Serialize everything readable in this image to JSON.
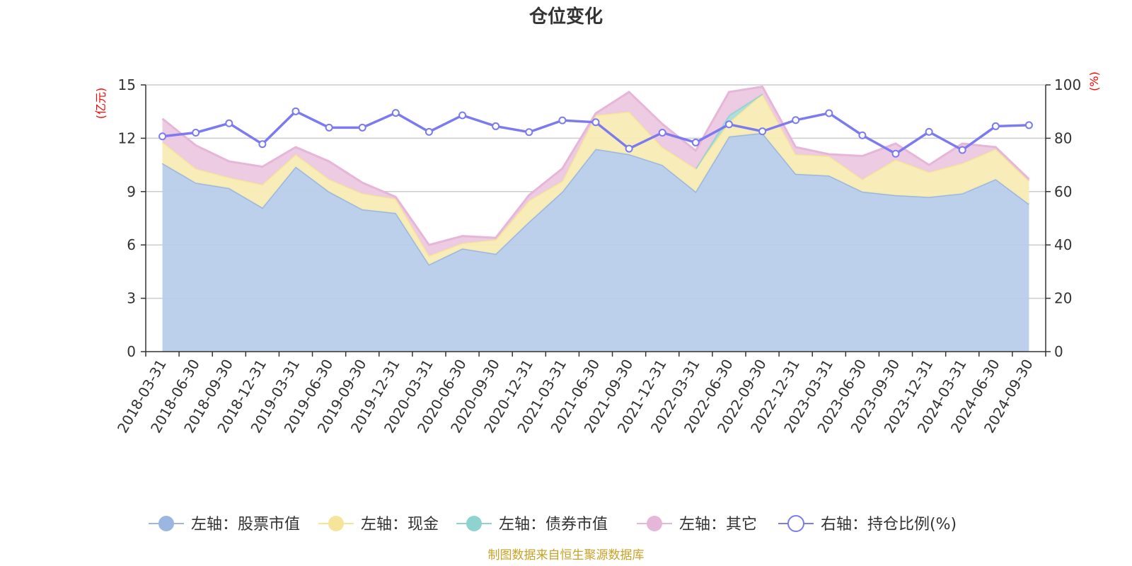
{
  "chart_data": {
    "type": "area",
    "title": "仓位变化",
    "left_axis_unit": "(亿元)",
    "right_axis_unit": "(%)",
    "left_axis": {
      "min": 0,
      "max": 15,
      "ticks": [
        0,
        3,
        6,
        9,
        12,
        15
      ]
    },
    "right_axis": {
      "min": 0,
      "max": 100,
      "ticks": [
        0,
        20,
        40,
        60,
        80,
        100
      ]
    },
    "grid": true,
    "legend_position": "bottom",
    "categories": [
      "2018-03-31",
      "2018-06-30",
      "2018-09-30",
      "2018-12-31",
      "2019-03-31",
      "2019-06-30",
      "2019-09-30",
      "2019-12-31",
      "2020-03-31",
      "2020-06-30",
      "2020-09-30",
      "2020-12-31",
      "2021-03-31",
      "2021-06-30",
      "2021-09-30",
      "2021-12-31",
      "2022-03-31",
      "2022-06-30",
      "2022-09-30",
      "2022-12-31",
      "2023-03-31",
      "2023-06-30",
      "2023-09-30",
      "2023-12-31",
      "2024-03-31",
      "2024-06-30",
      "2024-09-30"
    ],
    "series": [
      {
        "name": "左轴：股票市值",
        "axis": "left",
        "stacked": true,
        "color": "#9bb6e0",
        "fill": "#b8cdea",
        "values": [
          10.6,
          9.5,
          9.2,
          8.1,
          10.4,
          9.0,
          8.0,
          7.8,
          4.9,
          5.8,
          5.5,
          7.3,
          9.0,
          11.4,
          11.1,
          10.5,
          9.0,
          12.1,
          12.3,
          10.0,
          9.9,
          9.0,
          8.8,
          8.7,
          8.9,
          9.7,
          8.3
        ]
      },
      {
        "name": "左轴：现金",
        "axis": "left",
        "stacked": true,
        "color": "#f5e49a",
        "fill": "#f8ecb4",
        "values": [
          1.2,
          0.8,
          0.6,
          1.3,
          0.7,
          0.7,
          0.9,
          0.8,
          0.5,
          0.3,
          0.8,
          1.2,
          0.6,
          1.9,
          2.4,
          1.0,
          1.3,
          0.8,
          2.2,
          1.1,
          1.1,
          0.7,
          2.0,
          1.4,
          1.7,
          1.7,
          1.3
        ]
      },
      {
        "name": "左轴：债券市值",
        "axis": "left",
        "stacked": true,
        "color": "#8fd3d0",
        "fill": "#a8dcd9",
        "values": [
          null,
          null,
          null,
          null,
          null,
          null,
          null,
          null,
          null,
          null,
          null,
          null,
          null,
          null,
          null,
          null,
          0,
          0.4,
          0,
          null,
          null,
          null,
          null,
          null,
          null,
          null,
          null
        ]
      },
      {
        "name": "左轴：其它",
        "axis": "left",
        "stacked": true,
        "color": "#e6b6d8",
        "fill": "#ecc8e0",
        "values": [
          1.3,
          1.3,
          0.9,
          1.0,
          0.4,
          1.0,
          0.6,
          0.1,
          0.6,
          0.4,
          0.1,
          0.3,
          0.7,
          0.1,
          1.1,
          1.3,
          1.0,
          1.3,
          0.4,
          0.4,
          0.1,
          1.3,
          0.9,
          0.4,
          1.1,
          0.1,
          0.1
        ]
      },
      {
        "name": "右轴：持仓比例(%)",
        "axis": "right",
        "type": "line",
        "color": "#7b7bef",
        "values": [
          80.7,
          82.1,
          85.6,
          77.8,
          90.1,
          84.0,
          84.0,
          89.5,
          82.4,
          88.6,
          84.5,
          82.3,
          86.7,
          86.0,
          76.1,
          82.1,
          78.4,
          85.2,
          82.6,
          86.8,
          89.4,
          81.1,
          74.2,
          82.4,
          75.6,
          84.5,
          84.9
        ]
      }
    ]
  },
  "footer": "制图数据来自恒生聚源数据库"
}
